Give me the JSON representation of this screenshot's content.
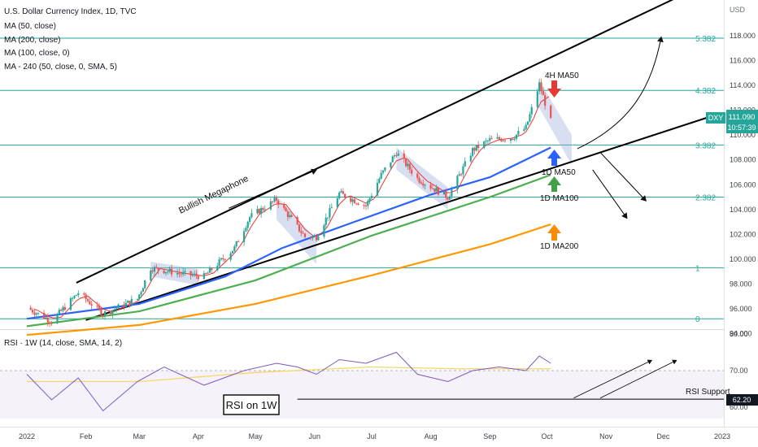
{
  "header": {
    "title": "U.S. Dollar Currency Index, 1D, TVC",
    "indicators": [
      "MA (50, close)",
      "MA (200, close)",
      "MA (100, close, 0)",
      "MA - 240 (50, close, 0, SMA, 5)"
    ]
  },
  "axis": {
    "currency": "USD",
    "price_ticks": [
      "118.000",
      "116.000",
      "114.000",
      "112.000",
      "110.000",
      "108.000",
      "106.000",
      "104.000",
      "102.000",
      "100.000",
      "98.000",
      "96.000",
      "94.000"
    ],
    "price_tick_values": [
      118,
      116,
      114,
      112,
      110,
      108,
      106,
      104,
      102,
      100,
      98,
      96,
      94
    ],
    "rsi_ticks": [
      "80.00",
      "70.00",
      "60.00"
    ],
    "rsi_tick_values": [
      80,
      70,
      60
    ],
    "x_labels": [
      "2022",
      "Feb",
      "Mar",
      "Apr",
      "May",
      "Jun",
      "Jul",
      "Aug",
      "Sep",
      "Oct",
      "Nov",
      "Dec",
      "2023"
    ]
  },
  "badges": {
    "symbol": "DXY",
    "price": "111.090",
    "countdown": "10:57:39",
    "rsi_value": "62.20"
  },
  "fib_levels": [
    {
      "label": "5.382",
      "price": 117.8
    },
    {
      "label": "4.382",
      "price": 113.6
    },
    {
      "label": "3.382",
      "price": 109.2
    },
    {
      "label": "2.382",
      "price": 105.0
    },
    {
      "label": "1",
      "price": 99.3
    },
    {
      "label": "0",
      "price": 95.2
    }
  ],
  "annotations": {
    "megaphone": "Bullish Megaphone",
    "ma50_4h": "4H MA50",
    "ma50_1d": "1D MA50",
    "ma100_1d": "1D MA100",
    "ma200_1d": "1D MA200",
    "rsi_title": "RSI on 1W",
    "rsi_support": "RSI Support"
  },
  "rsi_panel": {
    "title": "RSI · 1W (14, close, SMA, 14, 2)",
    "support_level": 62.2
  },
  "colors": {
    "fib_line": "#26a69a",
    "ma50": "#2962ff",
    "ma100": "#4caf50",
    "ma200": "#ff9800",
    "ma_short": "#e53935",
    "up_candle": "#26a69a",
    "down_candle": "#ef5350",
    "rsi_line": "#7e57c2",
    "rsi_ma": "#f5d76e",
    "badge": "#26a69a"
  },
  "chart_data": {
    "type": "candlestick",
    "title": "U.S. Dollar Currency Index, 1D, TVC",
    "ylim": [
      93.5,
      120
    ],
    "x_range": [
      "2022-01-01",
      "2023-01-01"
    ],
    "price_path": [
      {
        "date": "2022-01-01",
        "price": 96.1
      },
      {
        "date": "2022-01-14",
        "price": 95.0
      },
      {
        "date": "2022-01-28",
        "price": 97.3
      },
      {
        "date": "2022-02-10",
        "price": 95.6
      },
      {
        "date": "2022-02-28",
        "price": 96.8
      },
      {
        "date": "2022-03-07",
        "price": 99.3
      },
      {
        "date": "2022-03-24",
        "price": 98.8
      },
      {
        "date": "2022-04-04",
        "price": 98.6
      },
      {
        "date": "2022-04-20",
        "price": 100.9
      },
      {
        "date": "2022-04-28",
        "price": 103.4
      },
      {
        "date": "2022-05-12",
        "price": 104.8
      },
      {
        "date": "2022-05-27",
        "price": 101.8
      },
      {
        "date": "2022-06-02",
        "price": 101.8
      },
      {
        "date": "2022-06-14",
        "price": 105.3
      },
      {
        "date": "2022-06-28",
        "price": 104.3
      },
      {
        "date": "2022-07-06",
        "price": 106.8
      },
      {
        "date": "2022-07-14",
        "price": 108.6
      },
      {
        "date": "2022-07-25",
        "price": 106.5
      },
      {
        "date": "2022-08-10",
        "price": 105.0
      },
      {
        "date": "2022-08-23",
        "price": 108.8
      },
      {
        "date": "2022-09-01",
        "price": 109.6
      },
      {
        "date": "2022-09-13",
        "price": 109.8
      },
      {
        "date": "2022-09-20",
        "price": 110.6
      },
      {
        "date": "2022-09-27",
        "price": 114.1
      },
      {
        "date": "2022-10-03",
        "price": 111.1
      }
    ],
    "ma50": [
      {
        "date": "2022-01-01",
        "price": 95.2
      },
      {
        "date": "2022-03-01",
        "price": 96.4
      },
      {
        "date": "2022-04-15",
        "price": 98.6
      },
      {
        "date": "2022-05-15",
        "price": 100.9
      },
      {
        "date": "2022-06-20",
        "price": 102.9
      },
      {
        "date": "2022-08-01",
        "price": 105.2
      },
      {
        "date": "2022-09-01",
        "price": 106.6
      },
      {
        "date": "2022-10-03",
        "price": 109.0
      }
    ],
    "ma100": [
      {
        "date": "2022-01-01",
        "price": 94.6
      },
      {
        "date": "2022-03-01",
        "price": 95.8
      },
      {
        "date": "2022-05-01",
        "price": 98.3
      },
      {
        "date": "2022-07-01",
        "price": 101.9
      },
      {
        "date": "2022-09-01",
        "price": 105.0
      },
      {
        "date": "2022-10-03",
        "price": 106.8
      }
    ],
    "ma200": [
      {
        "date": "2022-01-01",
        "price": 93.9
      },
      {
        "date": "2022-03-01",
        "price": 94.7
      },
      {
        "date": "2022-05-01",
        "price": 96.4
      },
      {
        "date": "2022-07-01",
        "price": 98.7
      },
      {
        "date": "2022-09-01",
        "price": 101.2
      },
      {
        "date": "2022-10-03",
        "price": 102.8
      }
    ],
    "rsi": [
      {
        "date": "2022-01-01",
        "value": 69
      },
      {
        "date": "2022-01-14",
        "value": 62
      },
      {
        "date": "2022-01-28",
        "value": 68
      },
      {
        "date": "2022-02-10",
        "value": 59
      },
      {
        "date": "2022-02-28",
        "value": 67
      },
      {
        "date": "2022-03-14",
        "value": 71
      },
      {
        "date": "2022-04-04",
        "value": 66
      },
      {
        "date": "2022-04-25",
        "value": 70
      },
      {
        "date": "2022-05-12",
        "value": 72
      },
      {
        "date": "2022-05-23",
        "value": 71
      },
      {
        "date": "2022-06-02",
        "value": 69
      },
      {
        "date": "2022-06-14",
        "value": 73
      },
      {
        "date": "2022-06-28",
        "value": 72
      },
      {
        "date": "2022-07-14",
        "value": 75
      },
      {
        "date": "2022-07-25",
        "value": 69
      },
      {
        "date": "2022-08-10",
        "value": 67
      },
      {
        "date": "2022-08-23",
        "value": 70
      },
      {
        "date": "2022-09-06",
        "value": 71
      },
      {
        "date": "2022-09-20",
        "value": 70
      },
      {
        "date": "2022-09-27",
        "value": 74
      },
      {
        "date": "2022-10-03",
        "value": 72
      }
    ],
    "rsi_ma": [
      {
        "date": "2022-01-01",
        "value": 67
      },
      {
        "date": "2022-03-01",
        "value": 67
      },
      {
        "date": "2022-05-01",
        "value": 69.5
      },
      {
        "date": "2022-07-01",
        "value": 71
      },
      {
        "date": "2022-08-15",
        "value": 70.5
      },
      {
        "date": "2022-10-03",
        "value": 70.5
      }
    ],
    "rsi_support": 62.2
  }
}
